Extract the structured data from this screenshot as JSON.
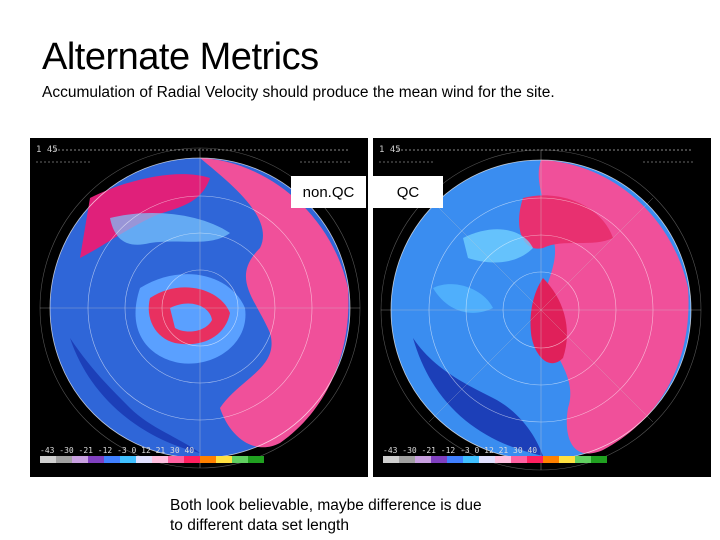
{
  "slide": {
    "title": "Alternate Metrics",
    "subtitle": "Accumulation of Radial Velocity should produce the mean wind for the site.",
    "caption_line1": "Both look believable, maybe difference is due",
    "caption_line2": "to different data set length"
  },
  "panels": {
    "left": {
      "label": "non.QC",
      "corner_header": "1 45",
      "scale_ticks": "-43 -30 -21 -12 -3 0 12 21 30 40"
    },
    "right": {
      "label": "QC",
      "corner_header": "1 45",
      "scale_ticks": "-43 -30 -21 -12 -3 0 12 21 30 40"
    }
  },
  "colors": {
    "approaching_blue": "#3a7cf0",
    "receding_pink": "#f0509a",
    "radar_background": "#000000"
  }
}
